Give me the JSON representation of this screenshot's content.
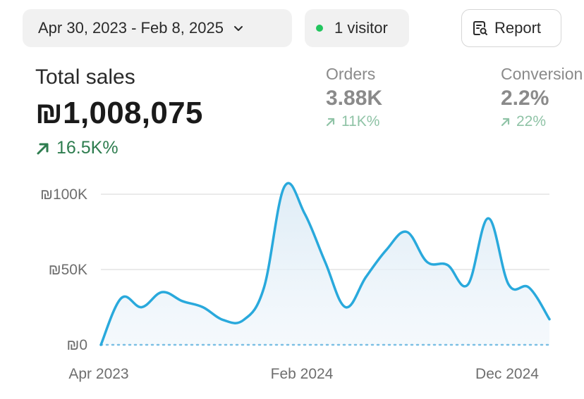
{
  "header": {
    "date_range": "Apr 30, 2023 - Feb 8, 2025",
    "visitors": "1 visitor",
    "report_label": "Report"
  },
  "metrics": {
    "total_sales": {
      "label": "Total sales",
      "value": "₪1,008,075",
      "change": "16.5K%"
    },
    "orders": {
      "label": "Orders",
      "value": "3.88K",
      "change": "11K%"
    },
    "conversion": {
      "label": "Conversion",
      "value": "2.2%",
      "change": "22%"
    }
  },
  "colors": {
    "accent_line": "#29a9dc",
    "positive": "#2e7d4f",
    "positive_muted": "#8fc3a6",
    "status_dot": "#22c55e"
  },
  "icons": [
    "chevron-down-icon",
    "status-dot-icon",
    "report-search-icon",
    "trend-up-arrow-icon"
  ],
  "chart_data": {
    "type": "area",
    "y_ticks": [
      "₪0",
      "₪50K",
      "₪100K"
    ],
    "x_ticks": [
      "Apr 2023",
      "Feb 2024",
      "Dec 2024"
    ],
    "ylim": [
      0,
      100000
    ],
    "series": [
      {
        "values": [
          0,
          31000,
          25000,
          35000,
          29000,
          25000,
          16500,
          16500,
          38000,
          105000,
          87000,
          55000,
          25000,
          45000,
          63000,
          75000,
          55000,
          53000,
          40000,
          84000,
          40000,
          38000,
          17000
        ]
      }
    ],
    "baseline_series": {
      "values": [
        0,
        0
      ]
    },
    "grid": true
  }
}
